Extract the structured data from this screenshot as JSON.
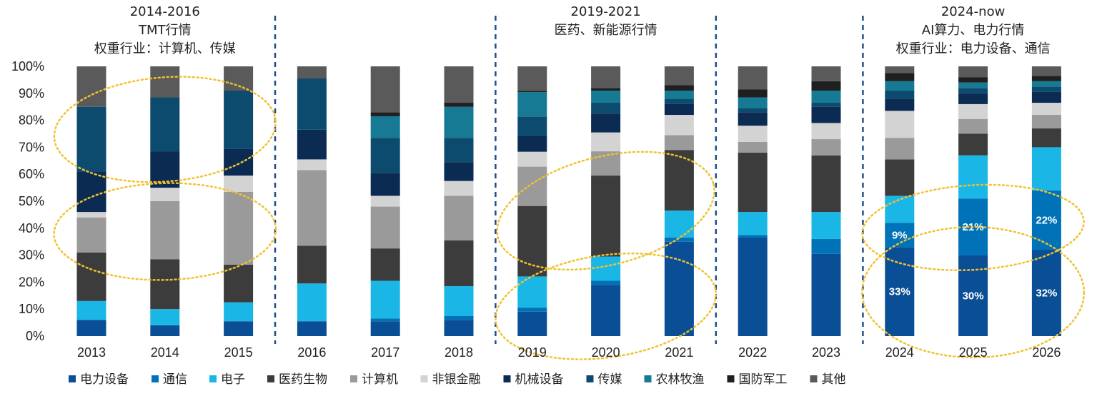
{
  "chart_data": {
    "type": "bar",
    "stacked": true,
    "normalized": true,
    "categories": [
      "2013",
      "2014",
      "2015",
      "2016",
      "2017",
      "2018",
      "2019",
      "2020",
      "2021",
      "2022",
      "2023",
      "2024",
      "2025",
      "2026"
    ],
    "ylim": [
      0,
      100
    ],
    "y_ticks": [
      "0%",
      "10%",
      "20%",
      "30%",
      "40%",
      "50%",
      "60%",
      "70%",
      "80%",
      "90%",
      "100%"
    ],
    "grid": false,
    "legend_position": "bottom",
    "series": [
      {
        "name": "电力设备",
        "color": "#0a4f96",
        "values": [
          6,
          4,
          5.5,
          5.5,
          5.5,
          6,
          9,
          19,
          35,
          36.5,
          30.5,
          33,
          30,
          32
        ]
      },
      {
        "name": "通信",
        "color": "#0072b8",
        "values": [
          0,
          0,
          0,
          0,
          1,
          1.5,
          1.5,
          1.5,
          1.5,
          1,
          5.5,
          9,
          21,
          22
        ]
      },
      {
        "name": "电子",
        "color": "#1ab7e6",
        "values": [
          7,
          6,
          7,
          14,
          14,
          11,
          11.5,
          9,
          10,
          8.5,
          10,
          10,
          16,
          16
        ]
      },
      {
        "name": "医药生物",
        "color": "#3c3c3c",
        "values": [
          18,
          18.5,
          14,
          14,
          12,
          17,
          26,
          30,
          22.5,
          22,
          21,
          13.5,
          8,
          7
        ]
      },
      {
        "name": "计算机",
        "color": "#9a9a9a",
        "values": [
          13,
          21.5,
          27,
          28,
          15.5,
          16.5,
          14.5,
          9,
          5.5,
          4,
          6,
          8,
          5.5,
          5
        ]
      },
      {
        "name": "非银金融",
        "color": "#d3d3d3",
        "values": [
          2,
          5,
          6,
          4,
          4,
          5.5,
          5.5,
          7,
          7.5,
          6,
          6,
          10,
          5.5,
          4.5
        ]
      },
      {
        "name": "机械设备",
        "color": "#0b2b52",
        "values": [
          15,
          13.5,
          10,
          11,
          8.5,
          7,
          6,
          7,
          4,
          5,
          6,
          4.5,
          4,
          4
        ]
      },
      {
        "name": "传媒",
        "color": "#0c4a6e",
        "values": [
          24,
          20,
          21.5,
          19,
          13,
          9,
          7,
          4,
          2,
          1.5,
          1.5,
          3,
          2,
          2
        ]
      },
      {
        "name": "农林牧渔",
        "color": "#177a94",
        "values": [
          0,
          0,
          0,
          0,
          8,
          11.5,
          9,
          4.5,
          3,
          4,
          4.5,
          3.5,
          2,
          2
        ]
      },
      {
        "name": "国防军工",
        "color": "#1f1f1f",
        "values": [
          0,
          0,
          0,
          0,
          1.5,
          1.5,
          0.5,
          1,
          2,
          3,
          3.5,
          3,
          2,
          2
        ]
      },
      {
        "name": "其他",
        "color": "#5a5a5a",
        "values": [
          15,
          11.5,
          9,
          4.5,
          17,
          13.5,
          9,
          8,
          7,
          8.5,
          5.5,
          2.5,
          4,
          3.5
        ]
      }
    ],
    "data_labels": [
      {
        "series": "通信",
        "category": "2024",
        "text": "9%"
      },
      {
        "series": "通信",
        "category": "2025",
        "text": "21%"
      },
      {
        "series": "通信",
        "category": "2026",
        "text": "22%"
      },
      {
        "series": "电力设备",
        "category": "2024",
        "text": "33%"
      },
      {
        "series": "电力设备",
        "category": "2025",
        "text": "30%"
      },
      {
        "series": "电力设备",
        "category": "2026",
        "text": "32%"
      }
    ],
    "periods": [
      {
        "lines": [
          "2014-2016",
          "TMT行情",
          "权重行业：计算机、传媒"
        ],
        "from": "2013",
        "to": "2015"
      },
      {
        "lines": [
          "2019-2021",
          "医药、新能源行情"
        ],
        "from": "2019",
        "to": "2021"
      },
      {
        "lines": [
          "2024-now",
          "AI算力、电力行情",
          "权重行业：电力设备、通信"
        ],
        "from": "2024",
        "to": "2026"
      }
    ],
    "dividers_after": [
      "2015",
      "2018",
      "2021",
      "2023"
    ],
    "highlight_ellipses": [
      {
        "series": "传媒",
        "categories": [
          "2013",
          "2015"
        ]
      },
      {
        "series": "计算机",
        "categories": [
          "2013",
          "2015"
        ]
      },
      {
        "series": "医药生物",
        "categories": [
          "2019",
          "2021"
        ]
      },
      {
        "series": "电力设备",
        "categories": [
          "2019",
          "2021"
        ]
      },
      {
        "series": "通信",
        "categories": [
          "2024",
          "2026"
        ]
      },
      {
        "series": "电力设备",
        "categories": [
          "2024",
          "2026"
        ]
      }
    ],
    "colors": {
      "divider": "#1b4f8c",
      "highlight": "#f2c12e",
      "label": "#ffffff"
    }
  }
}
